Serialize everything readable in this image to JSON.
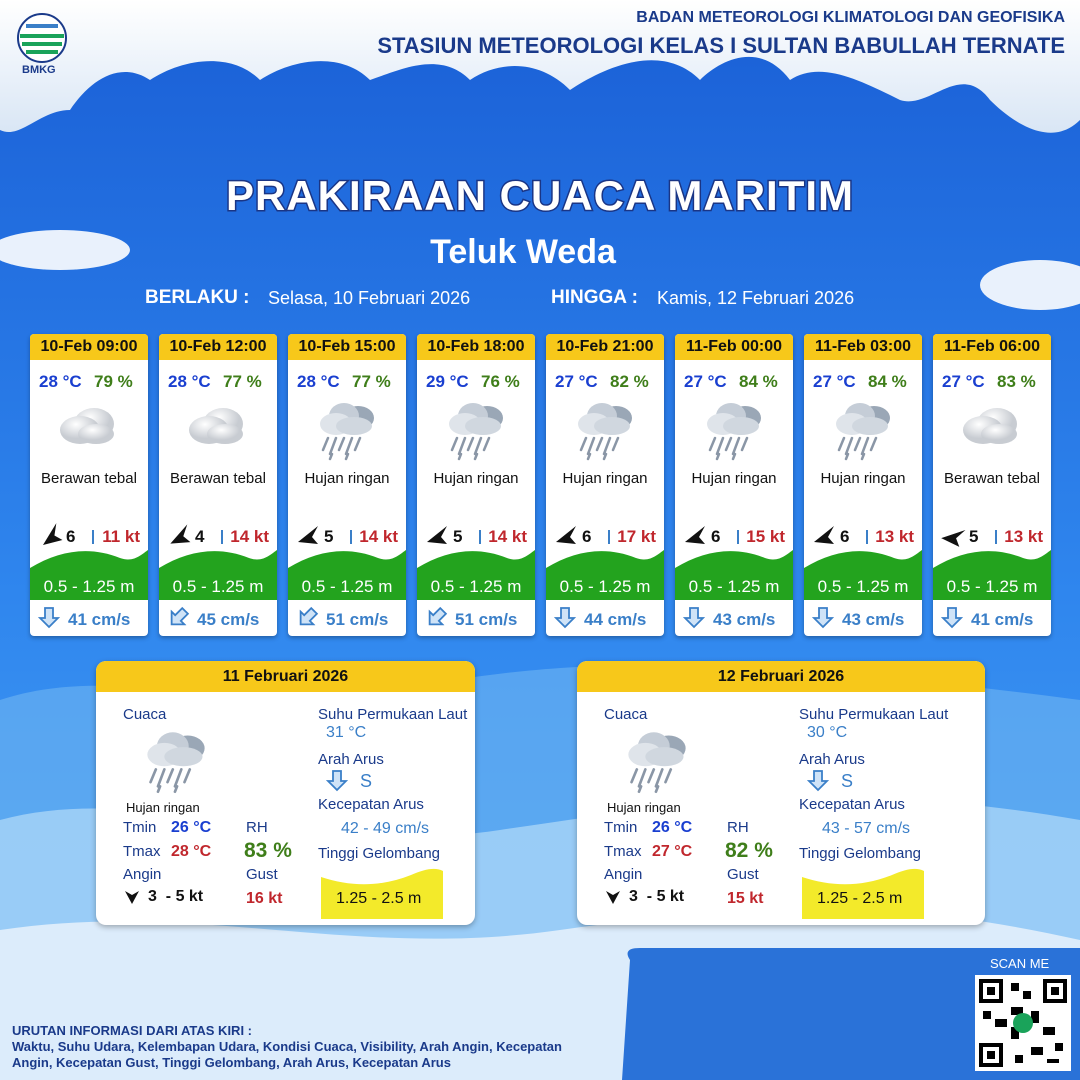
{
  "header": {
    "logo_text": "BMKG",
    "organization": "BADAN METEOROLOGI KLIMATOLOGI DAN GEOFISIKA",
    "station": "STASIUN METEOROLOGI KELAS I SULTAN BABULLAH TERNATE"
  },
  "title": "PRAKIRAAN CUACA MARITIM",
  "location": "Teluk Weda",
  "validity": {
    "from_label": "BERLAKU :",
    "from": "Selasa, 10 Februari 2026",
    "to_label": "HINGGA :",
    "to": "Kamis, 12 Februari 2026"
  },
  "forecasts": [
    {
      "time": "10-Feb 09:00",
      "temperature": "28 °C",
      "humidity": "79 %",
      "weather": "Berawan tebal",
      "wind_speed": "6",
      "gust": "11 kt",
      "wave_height": "0.5 - 1.25 m",
      "current_speed": "41 cm/s"
    },
    {
      "time": "10-Feb 12:00",
      "temperature": "28 °C",
      "humidity": "77 %",
      "weather": "Berawan tebal",
      "wind_speed": "4",
      "gust": "14 kt",
      "wave_height": "0.5 - 1.25 m",
      "current_speed": "45 cm/s"
    },
    {
      "time": "10-Feb 15:00",
      "temperature": "28 °C",
      "humidity": "77 %",
      "weather": "Hujan ringan",
      "wind_speed": "5",
      "gust": "14 kt",
      "wave_height": "0.5 - 1.25 m",
      "current_speed": "51 cm/s"
    },
    {
      "time": "10-Feb 18:00",
      "temperature": "29 °C",
      "humidity": "76 %",
      "weather": "Hujan ringan",
      "wind_speed": "5",
      "gust": "14 kt",
      "wave_height": "0.5 - 1.25 m",
      "current_speed": "51 cm/s"
    },
    {
      "time": "10-Feb 21:00",
      "temperature": "27 °C",
      "humidity": "82 %",
      "weather": "Hujan ringan",
      "wind_speed": "6",
      "gust": "17 kt",
      "wave_height": "0.5 - 1.25 m",
      "current_speed": "44 cm/s"
    },
    {
      "time": "11-Feb 00:00",
      "temperature": "27 °C",
      "humidity": "84 %",
      "weather": "Hujan ringan",
      "wind_speed": "6",
      "gust": "15 kt",
      "wave_height": "0.5 - 1.25 m",
      "current_speed": "43 cm/s"
    },
    {
      "time": "11-Feb 03:00",
      "temperature": "27 °C",
      "humidity": "84 %",
      "weather": "Hujan ringan",
      "wind_speed": "6",
      "gust": "13 kt",
      "wave_height": "0.5 - 1.25 m",
      "current_speed": "43 cm/s"
    },
    {
      "time": "11-Feb 06:00",
      "temperature": "27 °C",
      "humidity": "83 %",
      "weather": "Berawan tebal",
      "wind_speed": "5",
      "gust": "13 kt",
      "wave_height": "0.5 - 1.25 m",
      "current_speed": "41 cm/s"
    }
  ],
  "daily": [
    {
      "date": "11 Februari 2026",
      "weather_label": "Cuaca",
      "weather": "Hujan ringan",
      "tmin_label": "Tmin",
      "tmin": "26 °C",
      "tmax_label": "Tmax",
      "tmax": "28 °C",
      "wind_label": "Angin",
      "wind": "3  - 5 kt",
      "rh_label": "RH",
      "rh": "83 %",
      "gust_label": "Gust",
      "gust": "16 kt",
      "sst_label": "Suhu Permukaan Laut",
      "sst": "31 °C",
      "current_dir_label": "Arah Arus",
      "current_dir": "S",
      "current_speed_label": "Kecepatan Arus",
      "current_speed": "42 - 49 cm/s",
      "wave_label": "Tinggi Gelombang",
      "wave": "1.25 - 2.5 m"
    },
    {
      "date": "12 Februari 2026",
      "weather_label": "Cuaca",
      "weather": "Hujan ringan",
      "tmin_label": "Tmin",
      "tmin": "26 °C",
      "tmax_label": "Tmax",
      "tmax": "27 °C",
      "wind_label": "Angin",
      "wind": "3  - 5 kt",
      "rh_label": "RH",
      "rh": "82 %",
      "gust_label": "Gust",
      "gust": "15 kt",
      "sst_label": "Suhu Permukaan Laut",
      "sst": "30 °C",
      "current_dir_label": "Arah Arus",
      "current_dir": "S",
      "current_speed_label": "Kecepatan Arus",
      "current_speed": "43 - 57 cm/s",
      "wave_label": "Tinggi Gelombang",
      "wave": "1.25 - 2.5 m"
    }
  ],
  "footer": {
    "scan": "SCAN ME",
    "note_title": "URUTAN INFORMASI DARI ATAS KIRI :",
    "note": "Waktu, Suhu Udara, Kelembapan Udara, Kondisi Cuaca, Visibility, Arah Angin, Kecepatan Angin, Kecepatan Gust, Tinggi Gelombang, Arah Arus, Kecepatan Arus"
  }
}
